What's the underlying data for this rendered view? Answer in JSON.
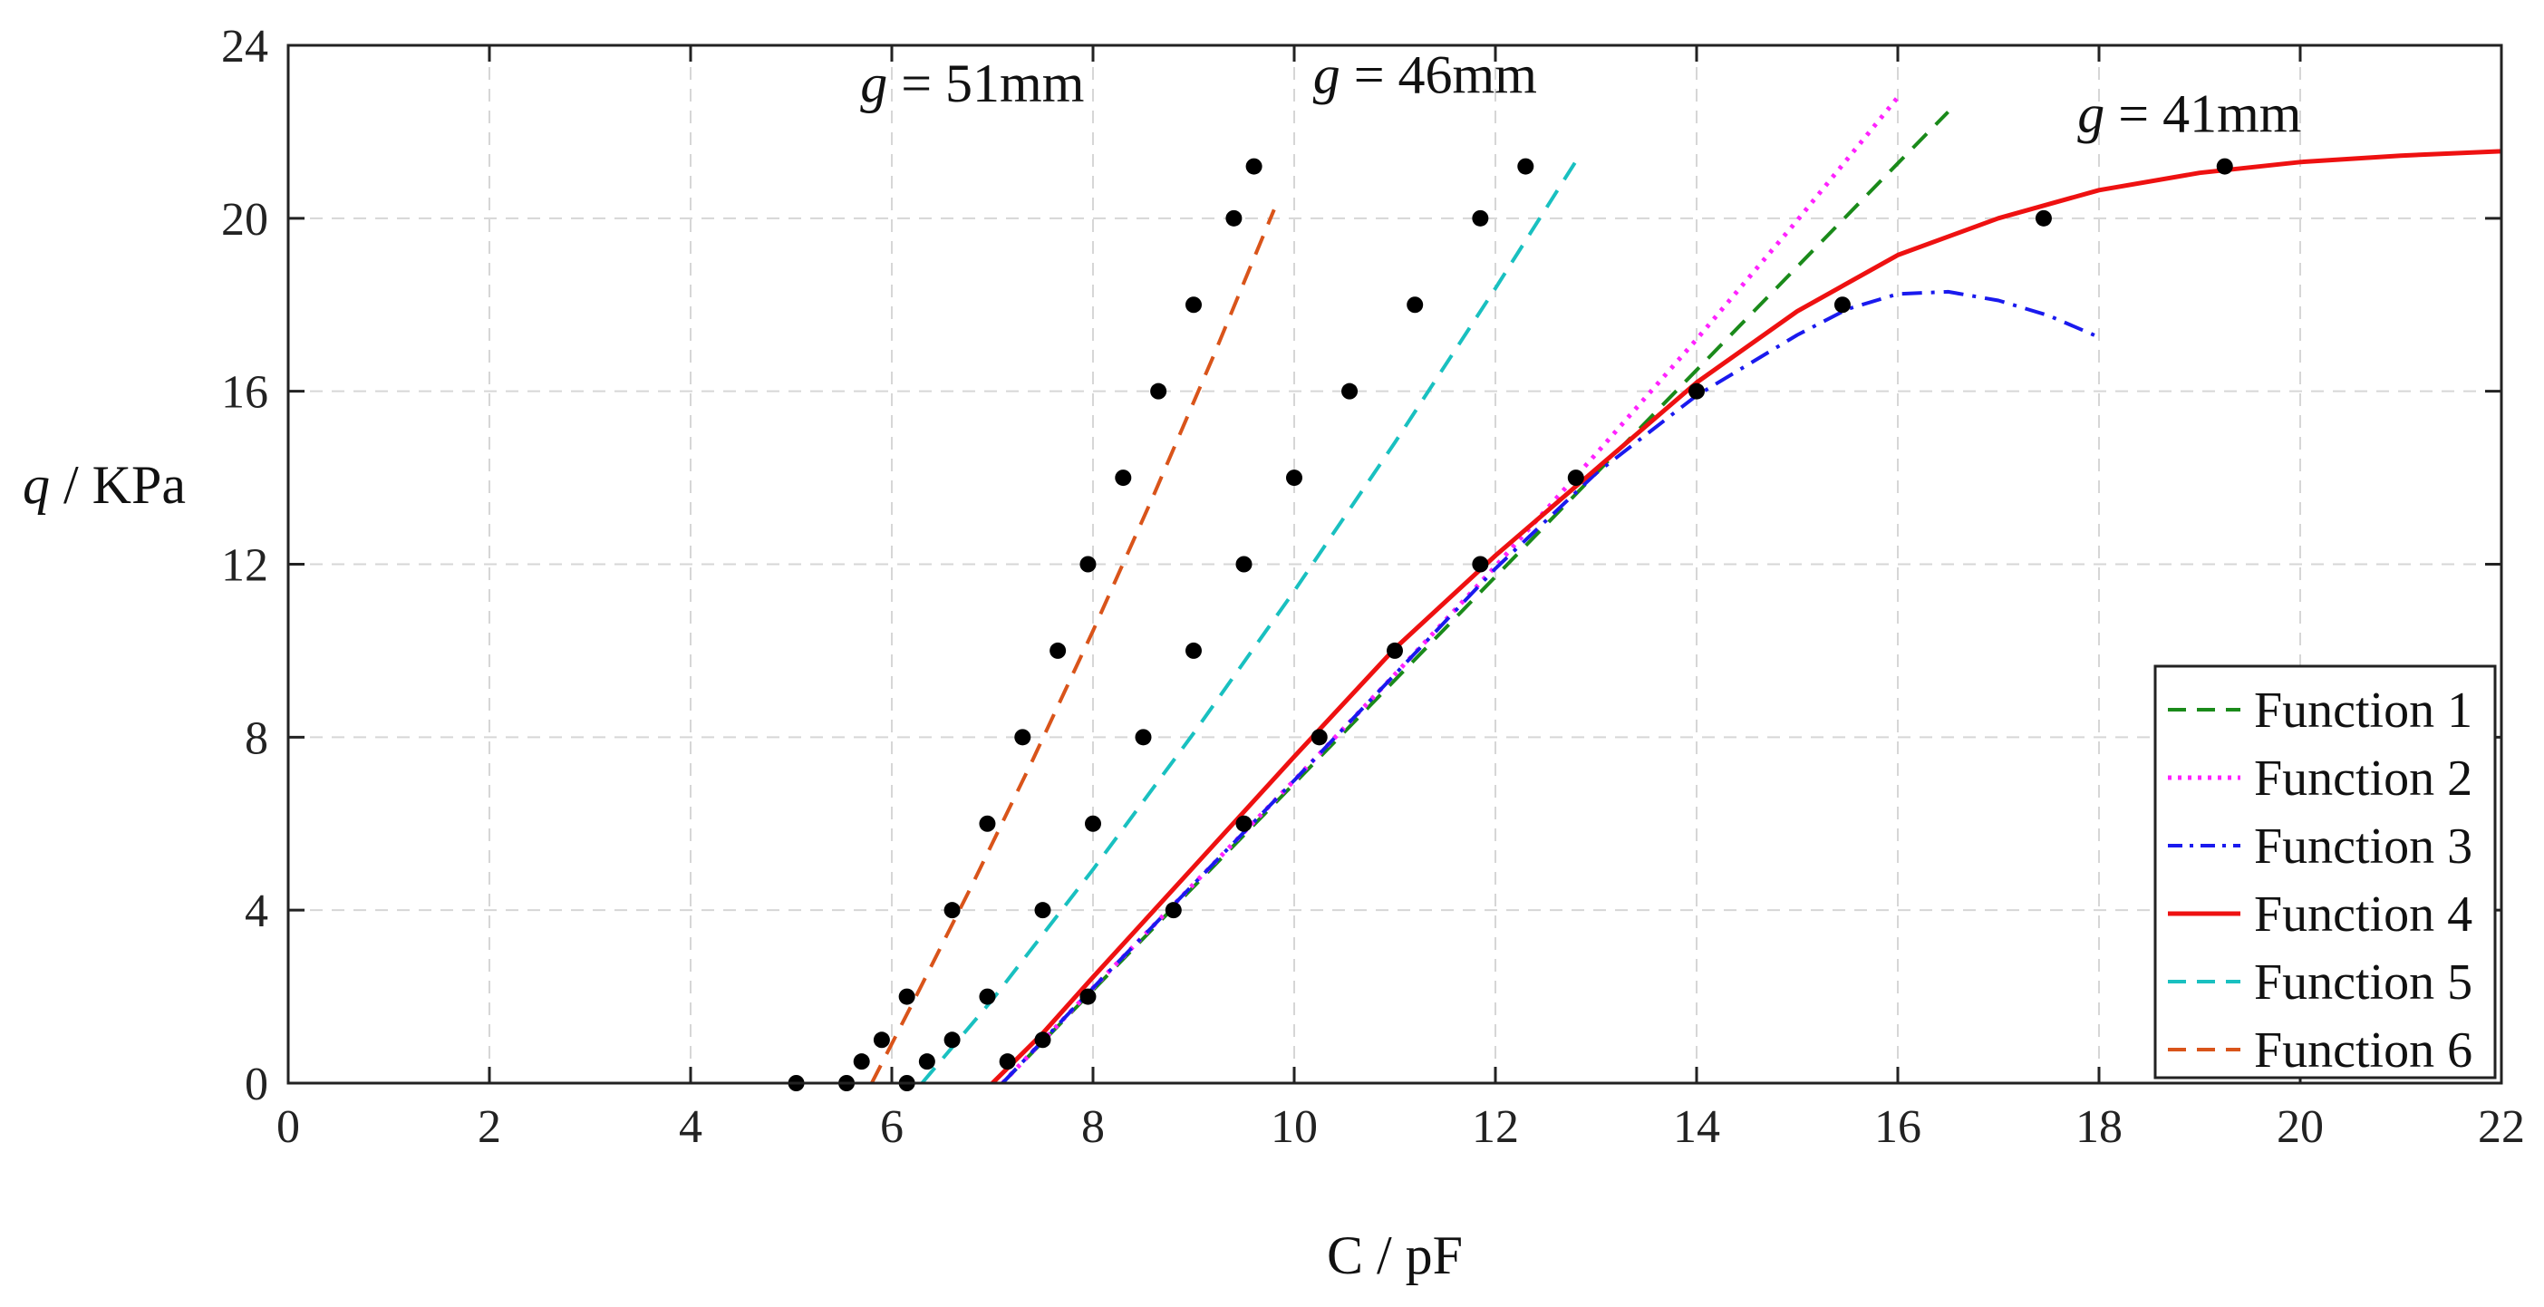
{
  "chart_data": {
    "type": "line",
    "title": "",
    "xlabel": "C / pF",
    "ylabel": "q / KPa",
    "xlim": [
      0,
      22
    ],
    "ylim": [
      0,
      24
    ],
    "xticks": [
      0,
      2,
      4,
      6,
      8,
      10,
      12,
      14,
      16,
      18,
      20,
      22
    ],
    "yticks": [
      0,
      4,
      8,
      12,
      16,
      20,
      24
    ],
    "grid": true,
    "legend_position": "bottom-right",
    "annotations": [
      {
        "var": "g",
        "text": " = 51mm",
        "x": 6.8,
        "y": 22.7
      },
      {
        "var": "g",
        "text": " = 46mm",
        "x": 11.3,
        "y": 22.9
      },
      {
        "var": "g",
        "text": " = 41mm",
        "x": 18.9,
        "y": 22.0
      }
    ],
    "series": [
      {
        "name": "Function 1",
        "color": "#1a8a1a",
        "dash": "22,14",
        "width": 4,
        "x": [
          7.1,
          8,
          9,
          10,
          11,
          12,
          13,
          14,
          15,
          16,
          16.5
        ],
        "y": [
          0.0,
          2.15,
          4.54,
          6.93,
          9.32,
          11.71,
          14.1,
          16.49,
          18.88,
          21.27,
          22.46
        ]
      },
      {
        "name": "Function 2",
        "color": "#ff22ff",
        "dash": "4,8",
        "width": 5,
        "x": [
          7.1,
          8,
          9,
          10,
          11,
          12,
          13,
          14,
          15,
          16
        ],
        "y": [
          0.0,
          2.2,
          4.6,
          7.0,
          9.45,
          11.95,
          14.55,
          17.2,
          19.95,
          22.8
        ]
      },
      {
        "name": "Function 3",
        "color": "#1a1aee",
        "dash": "22,10,4,10",
        "width": 4,
        "x": [
          7.1,
          8,
          9,
          10,
          11,
          12,
          13,
          14,
          15,
          15.5,
          16,
          16.5,
          17,
          17.5,
          18
        ],
        "y": [
          0.0,
          2.2,
          4.6,
          7.0,
          9.45,
          11.9,
          14.1,
          15.9,
          17.3,
          17.9,
          18.25,
          18.3,
          18.1,
          17.75,
          17.25
        ]
      },
      {
        "name": "Function 4",
        "color": "#ee1111",
        "dash": "",
        "width": 5,
        "x": [
          7.0,
          7.5,
          8,
          9,
          10,
          11,
          12,
          13,
          14,
          15,
          16,
          17,
          18,
          19,
          20,
          21,
          22
        ],
        "y": [
          0.0,
          1.15,
          2.45,
          5.0,
          7.55,
          10.05,
          12.2,
          14.2,
          16.2,
          17.85,
          19.15,
          20.0,
          20.65,
          21.05,
          21.3,
          21.45,
          21.55
        ]
      },
      {
        "name": "Function 5",
        "color": "#19c0c0",
        "dash": "22,14",
        "width": 4,
        "x": [
          6.3,
          7,
          8,
          9,
          10,
          11,
          12,
          12.8
        ],
        "y": [
          0.0,
          1.93,
          4.94,
          8.09,
          11.38,
          14.81,
          18.38,
          21.32
        ]
      },
      {
        "name": "Function 6",
        "color": "#d9541a",
        "dash": "22,14",
        "width": 4,
        "x": [
          5.8,
          6.2,
          6.8,
          7.4,
          8,
          8.6,
          9.2,
          9.8
        ],
        "y": [
          0.0,
          1.82,
          4.59,
          7.47,
          10.46,
          13.58,
          16.83,
          20.2
        ]
      }
    ],
    "scatter_points": [
      {
        "group": "g = 51mm",
        "x": [
          5.05,
          5.55,
          5.7,
          5.9,
          6.15,
          6.6,
          6.95,
          7.3,
          7.65,
          7.95,
          8.3,
          8.65,
          9.0,
          9.4,
          9.6
        ],
        "y": [
          0,
          0,
          0.5,
          1,
          2,
          4,
          6,
          8,
          10,
          12,
          14,
          16,
          18,
          20,
          21.2
        ]
      },
      {
        "group": "g = 46mm",
        "x": [
          6.15,
          6.35,
          6.6,
          6.95,
          7.5,
          8.0,
          8.5,
          9.0,
          9.5,
          10.0,
          10.55,
          11.2,
          11.85,
          12.3
        ],
        "y": [
          0,
          0.5,
          1,
          2,
          4,
          6,
          8,
          10,
          12,
          14,
          16,
          18,
          20,
          21.2
        ]
      },
      {
        "group": "g = 41mm",
        "x": [
          7.15,
          7.5,
          7.95,
          8.8,
          9.5,
          10.25,
          11.0,
          11.85,
          12.8,
          14.0,
          15.45,
          17.45,
          19.25
        ],
        "y": [
          0.5,
          1,
          2,
          4,
          6,
          8,
          10,
          12,
          14,
          16,
          18,
          20,
          21.2
        ]
      }
    ]
  }
}
